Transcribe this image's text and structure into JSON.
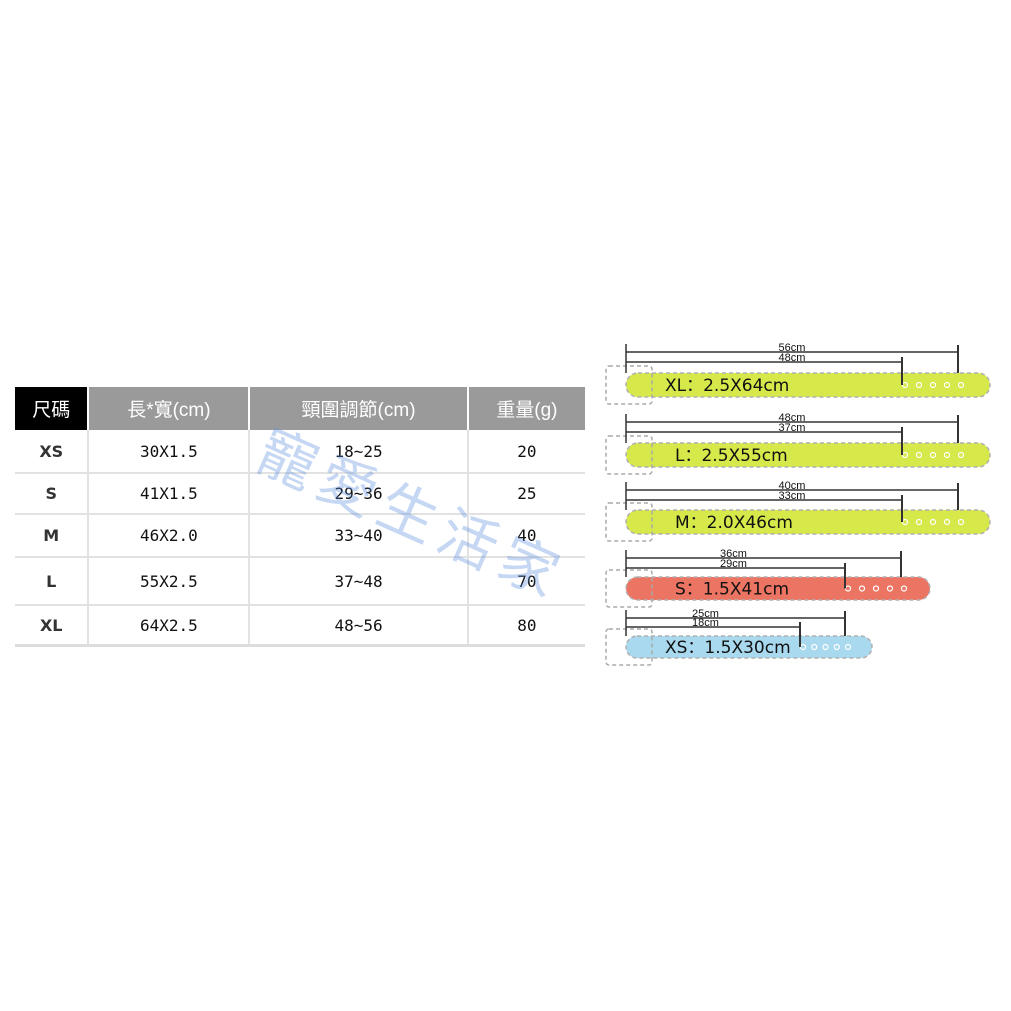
{
  "table": {
    "headers": [
      "尺碼",
      "長*寬(cm)",
      "頸圍調節(cm)",
      "重量(g)"
    ],
    "rows": [
      [
        "XS",
        "30X1.5",
        "18~25",
        "20"
      ],
      [
        "S",
        "41X1.5",
        "29~36",
        "25"
      ],
      [
        "M",
        "46X2.0",
        "33~40",
        "40"
      ],
      [
        "L",
        "55X2.5",
        "37~48",
        "70"
      ],
      [
        "XL",
        "64X2.5",
        "48~56",
        "80"
      ]
    ]
  },
  "belts": [
    {
      "label": "XL：2.5X64cm",
      "max": "56cm",
      "min": "48cm",
      "color": "#d6e84a"
    },
    {
      "label": "L：2.5X55cm",
      "max": "48cm",
      "min": "37cm",
      "color": "#d6e84a"
    },
    {
      "label": "M：2.0X46cm",
      "max": "40cm",
      "min": "33cm",
      "color": "#d6e84a"
    },
    {
      "label": "S：1.5X41cm",
      "max": "36cm",
      "min": "29cm",
      "color": "#ec7463"
    },
    {
      "label": "XS：1.5X30cm",
      "max": "25cm",
      "min": "18cm",
      "color": "#a9d9ee"
    }
  ],
  "watermark": "寵愛生活家"
}
